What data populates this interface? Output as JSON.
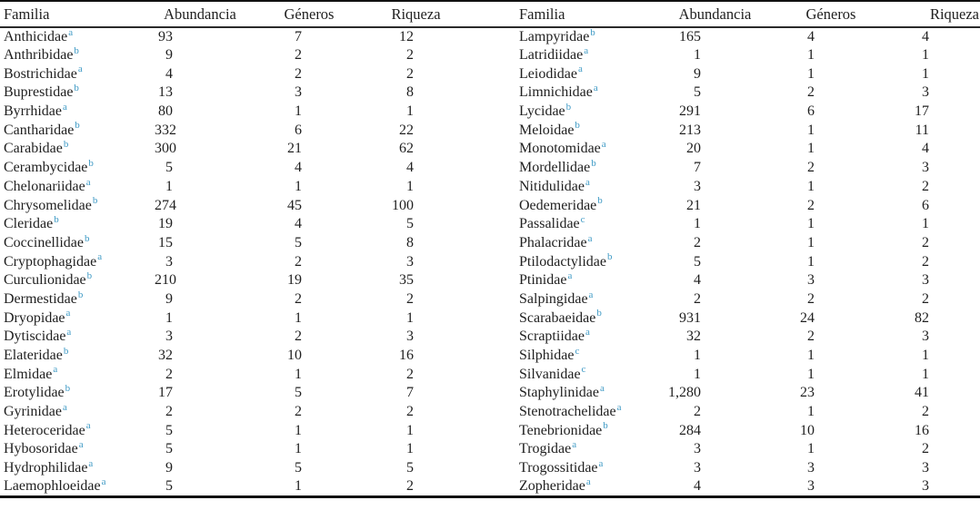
{
  "colors": {
    "superscript_link": "#3f9ac5",
    "text": "#1f1f1f",
    "rule": "#111111",
    "background": "#ffffff"
  },
  "table": {
    "headers": [
      "Familia",
      "Abundancia",
      "Géneros",
      "Riqueza"
    ],
    "superscript_categories": [
      "a",
      "b",
      "c"
    ],
    "left_rows": [
      {
        "familia": "Anthicidae",
        "sup": "a",
        "abundancia": "93",
        "generos": "7",
        "riqueza": "12"
      },
      {
        "familia": "Anthribidae",
        "sup": "b",
        "abundancia": "9",
        "generos": "2",
        "riqueza": "2"
      },
      {
        "familia": "Bostrichidae",
        "sup": "a",
        "abundancia": "4",
        "generos": "2",
        "riqueza": "2"
      },
      {
        "familia": "Buprestidae",
        "sup": "b",
        "abundancia": "13",
        "generos": "3",
        "riqueza": "8"
      },
      {
        "familia": "Byrrhidae",
        "sup": "a",
        "abundancia": "80",
        "generos": "1",
        "riqueza": "1"
      },
      {
        "familia": "Cantharidae",
        "sup": "b",
        "abundancia": "332",
        "generos": "6",
        "riqueza": "22"
      },
      {
        "familia": "Carabidae",
        "sup": "b",
        "abundancia": "300",
        "generos": "21",
        "riqueza": "62"
      },
      {
        "familia": "Cerambycidae",
        "sup": "b",
        "abundancia": "5",
        "generos": "4",
        "riqueza": "4"
      },
      {
        "familia": "Chelonariidae",
        "sup": "a",
        "abundancia": "1",
        "generos": "1",
        "riqueza": "1"
      },
      {
        "familia": "Chrysomelidae",
        "sup": "b",
        "abundancia": "274",
        "generos": "45",
        "riqueza": "100"
      },
      {
        "familia": "Cleridae",
        "sup": "b",
        "abundancia": "19",
        "generos": "4",
        "riqueza": "5"
      },
      {
        "familia": "Coccinellidae",
        "sup": "b",
        "abundancia": "15",
        "generos": "5",
        "riqueza": "8"
      },
      {
        "familia": "Cryptophagidae",
        "sup": "a",
        "abundancia": "3",
        "generos": "2",
        "riqueza": "3"
      },
      {
        "familia": "Curculionidae",
        "sup": "b",
        "abundancia": "210",
        "generos": "19",
        "riqueza": "35"
      },
      {
        "familia": "Dermestidae",
        "sup": "b",
        "abundancia": "9",
        "generos": "2",
        "riqueza": "2"
      },
      {
        "familia": "Dryopidae",
        "sup": "a",
        "abundancia": "1",
        "generos": "1",
        "riqueza": "1"
      },
      {
        "familia": "Dytiscidae",
        "sup": "a",
        "abundancia": "3",
        "generos": "2",
        "riqueza": "3"
      },
      {
        "familia": "Elateridae",
        "sup": "b",
        "abundancia": "32",
        "generos": "10",
        "riqueza": "16"
      },
      {
        "familia": "Elmidae",
        "sup": "a",
        "abundancia": "2",
        "generos": "1",
        "riqueza": "2"
      },
      {
        "familia": "Erotylidae",
        "sup": "b",
        "abundancia": "17",
        "generos": "5",
        "riqueza": "7"
      },
      {
        "familia": "Gyrinidae",
        "sup": "a",
        "abundancia": "2",
        "generos": "2",
        "riqueza": "2"
      },
      {
        "familia": "Heteroceridae",
        "sup": "a",
        "abundancia": "5",
        "generos": "1",
        "riqueza": "1"
      },
      {
        "familia": "Hybosoridae",
        "sup": "a",
        "abundancia": "5",
        "generos": "1",
        "riqueza": "1"
      },
      {
        "familia": "Hydrophilidae",
        "sup": "a",
        "abundancia": "9",
        "generos": "5",
        "riqueza": "5"
      },
      {
        "familia": "Laemophloeidae",
        "sup": "a",
        "abundancia": "5",
        "generos": "1",
        "riqueza": "2"
      }
    ],
    "right_rows": [
      {
        "familia": "Lampyridae",
        "sup": "b",
        "abundancia": "165",
        "generos": "4",
        "riqueza": "4"
      },
      {
        "familia": "Latridiidae",
        "sup": "a",
        "abundancia": "1",
        "generos": "1",
        "riqueza": "1"
      },
      {
        "familia": "Leiodidae",
        "sup": "a",
        "abundancia": "9",
        "generos": "1",
        "riqueza": "1"
      },
      {
        "familia": "Limnichidae",
        "sup": "a",
        "abundancia": "5",
        "generos": "2",
        "riqueza": "3"
      },
      {
        "familia": "Lycidae",
        "sup": "b",
        "abundancia": "291",
        "generos": "6",
        "riqueza": "17"
      },
      {
        "familia": "Meloidae",
        "sup": "b",
        "abundancia": "213",
        "generos": "1",
        "riqueza": "11"
      },
      {
        "familia": "Monotomidae",
        "sup": "a",
        "abundancia": "20",
        "generos": "1",
        "riqueza": "4"
      },
      {
        "familia": "Mordellidae",
        "sup": "b",
        "abundancia": "7",
        "generos": "2",
        "riqueza": "3"
      },
      {
        "familia": "Nitidulidae",
        "sup": "a",
        "abundancia": "3",
        "generos": "1",
        "riqueza": "2"
      },
      {
        "familia": "Oedemeridae",
        "sup": "b",
        "abundancia": "21",
        "generos": "2",
        "riqueza": "6"
      },
      {
        "familia": "Passalidae",
        "sup": "c",
        "abundancia": "1",
        "generos": "1",
        "riqueza": "1"
      },
      {
        "familia": "Phalacridae",
        "sup": "a",
        "abundancia": "2",
        "generos": "1",
        "riqueza": "2"
      },
      {
        "familia": "Ptilodactylidae",
        "sup": "b",
        "abundancia": "5",
        "generos": "1",
        "riqueza": "2"
      },
      {
        "familia": "Ptinidae",
        "sup": "a",
        "abundancia": "4",
        "generos": "3",
        "riqueza": "3"
      },
      {
        "familia": "Salpingidae",
        "sup": "a",
        "abundancia": "2",
        "generos": "2",
        "riqueza": "2"
      },
      {
        "familia": "Scarabaeidae",
        "sup": "b",
        "abundancia": "931",
        "generos": "24",
        "riqueza": "82"
      },
      {
        "familia": "Scraptiidae",
        "sup": "a",
        "abundancia": "32",
        "generos": "2",
        "riqueza": "3"
      },
      {
        "familia": "Silphidae",
        "sup": "c",
        "abundancia": "1",
        "generos": "1",
        "riqueza": "1"
      },
      {
        "familia": "Silvanidae",
        "sup": "c",
        "abundancia": "1",
        "generos": "1",
        "riqueza": "1"
      },
      {
        "familia": "Staphylinidae",
        "sup": "a",
        "abundancia": "1,280",
        "generos": "23",
        "riqueza": "41"
      },
      {
        "familia": "Stenotrachelidae",
        "sup": "a",
        "abundancia": "2",
        "generos": "1",
        "riqueza": "2"
      },
      {
        "familia": "Tenebrionidae",
        "sup": "b",
        "abundancia": "284",
        "generos": "10",
        "riqueza": "16"
      },
      {
        "familia": "Trogidae",
        "sup": "a",
        "abundancia": "3",
        "generos": "1",
        "riqueza": "2"
      },
      {
        "familia": "Trogossitidae",
        "sup": "a",
        "abundancia": "3",
        "generos": "3",
        "riqueza": "3"
      },
      {
        "familia": "Zopheridae",
        "sup": "a",
        "abundancia": "4",
        "generos": "3",
        "riqueza": "3"
      }
    ]
  }
}
